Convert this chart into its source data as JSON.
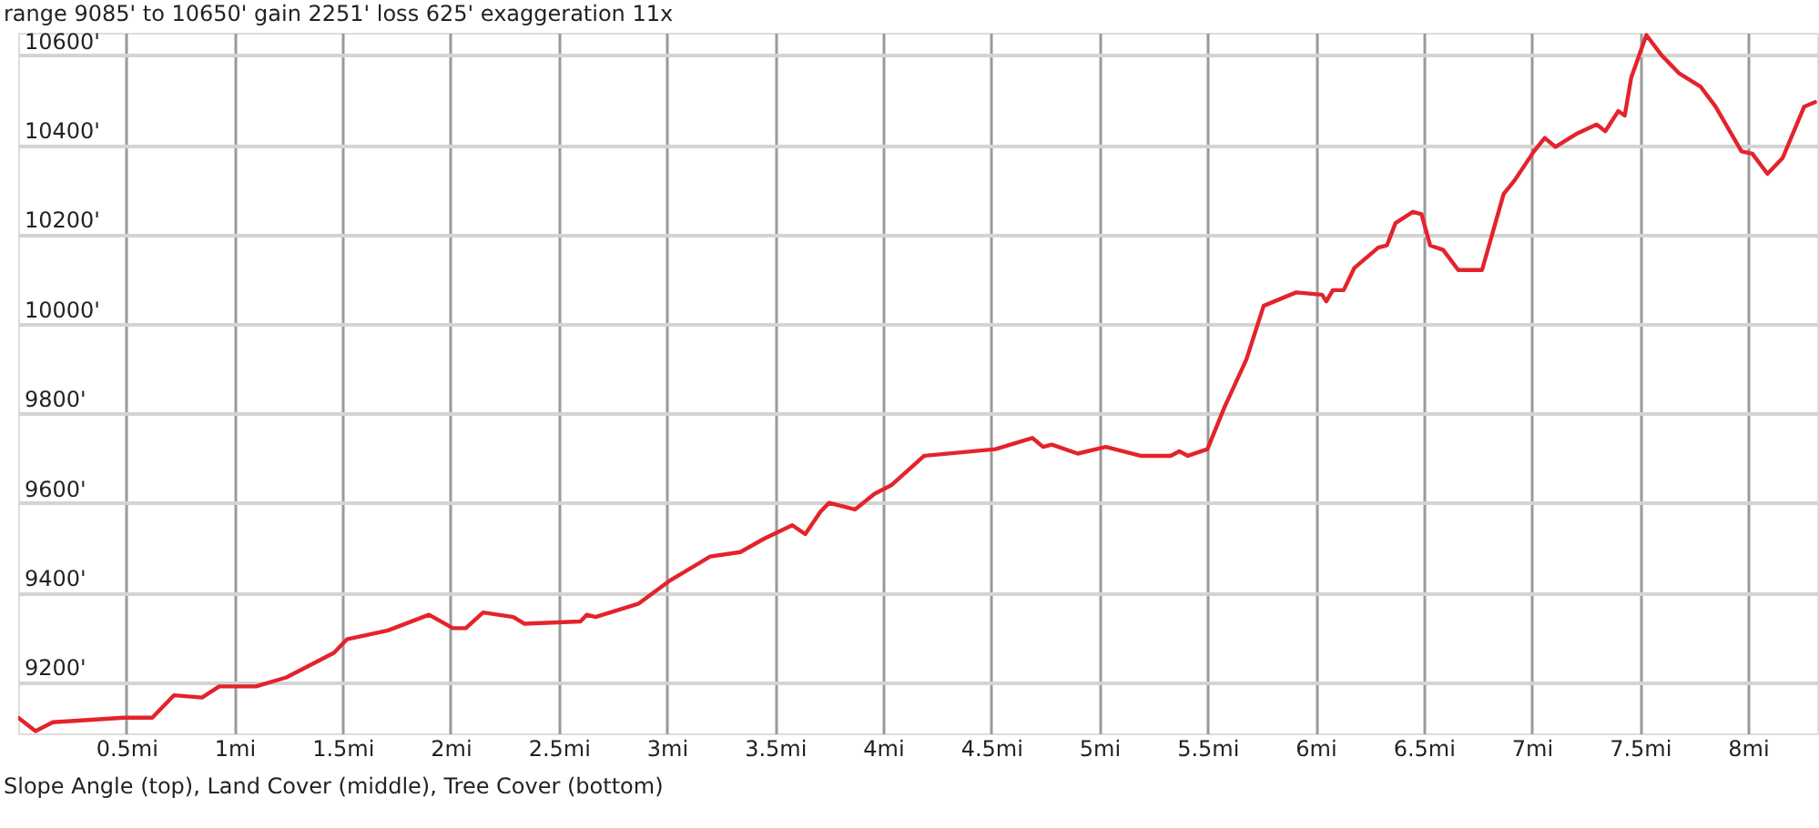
{
  "chart_data": {
    "type": "line",
    "title": "range 9085' to 10650' gain 2251' loss 625' exaggeration 11x",
    "annotations": [
      "Slope Angle (top), Land Cover (middle), Tree Cover (bottom)"
    ],
    "x": [
      0,
      0.08,
      0.16,
      0.49,
      0.62,
      0.72,
      0.85,
      0.93,
      1.1,
      1.24,
      1.46,
      1.52,
      1.71,
      1.9,
      2.01,
      2.07,
      2.15,
      2.29,
      2.34,
      2.6,
      2.63,
      2.67,
      2.87,
      3.01,
      3.2,
      3.34,
      3.45,
      3.58,
      3.64,
      3.71,
      3.75,
      3.87,
      3.96,
      4.04,
      4.19,
      4.52,
      4.69,
      4.74,
      4.78,
      4.9,
      5.03,
      5.19,
      5.33,
      5.37,
      5.41,
      5.5,
      5.58,
      5.68,
      5.76,
      5.91,
      6.03,
      6.05,
      6.08,
      6.13,
      6.18,
      6.29,
      6.33,
      6.37,
      6.45,
      6.49,
      6.53,
      6.59,
      6.66,
      6.77,
      6.87,
      6.92,
      7.01,
      7.06,
      7.11,
      7.21,
      7.3,
      7.34,
      7.4,
      7.43,
      7.46,
      7.53,
      7.6,
      7.68,
      7.78,
      7.85,
      7.97,
      8.02,
      8.09,
      8.16,
      8.26,
      8.31
    ],
    "series": [
      {
        "color": "#e4232b",
        "values": [
          9120,
          9090,
          9110,
          9120,
          9120,
          9170,
          9165,
          9190,
          9190,
          9210,
          9265,
          9295,
          9315,
          9350,
          9320,
          9320,
          9355,
          9345,
          9330,
          9335,
          9350,
          9345,
          9375,
          9425,
          9480,
          9490,
          9520,
          9550,
          9530,
          9580,
          9600,
          9585,
          9620,
          9640,
          9705,
          9720,
          9745,
          9725,
          9730,
          9710,
          9725,
          9705,
          9705,
          9715,
          9705,
          9720,
          9815,
          9920,
          10040,
          10070,
          10065,
          10050,
          10075,
          10075,
          10125,
          10170,
          10175,
          10225,
          10250,
          10245,
          10175,
          10165,
          10120,
          10120,
          10290,
          10320,
          10385,
          10415,
          10395,
          10425,
          10445,
          10430,
          10475,
          10465,
          10550,
          10645,
          10600,
          10560,
          10530,
          10485,
          10385,
          10380,
          10335,
          10370,
          10485,
          10495
        ]
      }
    ],
    "xlim": [
      0,
      8.32
    ],
    "ylim": [
      9085,
      10650
    ],
    "xticks": [
      {
        "value": 0.5,
        "label": "0.5mi"
      },
      {
        "value": 1,
        "label": "1mi"
      },
      {
        "value": 1.5,
        "label": "1.5mi"
      },
      {
        "value": 2,
        "label": "2mi"
      },
      {
        "value": 2.5,
        "label": "2.5mi"
      },
      {
        "value": 3,
        "label": "3mi"
      },
      {
        "value": 3.5,
        "label": "3.5mi"
      },
      {
        "value": 4,
        "label": "4mi"
      },
      {
        "value": 4.5,
        "label": "4.5mi"
      },
      {
        "value": 5,
        "label": "5mi"
      },
      {
        "value": 5.5,
        "label": "5.5mi"
      },
      {
        "value": 6,
        "label": "6mi"
      },
      {
        "value": 6.5,
        "label": "6.5mi"
      },
      {
        "value": 7,
        "label": "7mi"
      },
      {
        "value": 7.5,
        "label": "7.5mi"
      },
      {
        "value": 8,
        "label": "8mi"
      }
    ],
    "yticks": [
      {
        "value": 9200,
        "label": "9200'"
      },
      {
        "value": 9400,
        "label": "9400'"
      },
      {
        "value": 9600,
        "label": "9600'"
      },
      {
        "value": 9800,
        "label": "9800'"
      },
      {
        "value": 10000,
        "label": "10000'"
      },
      {
        "value": 10200,
        "label": "10200'"
      },
      {
        "value": 10400,
        "label": "10400'"
      },
      {
        "value": 10600,
        "label": "10600'"
      }
    ],
    "grid": true,
    "marker": "none",
    "line_style": "solid"
  }
}
